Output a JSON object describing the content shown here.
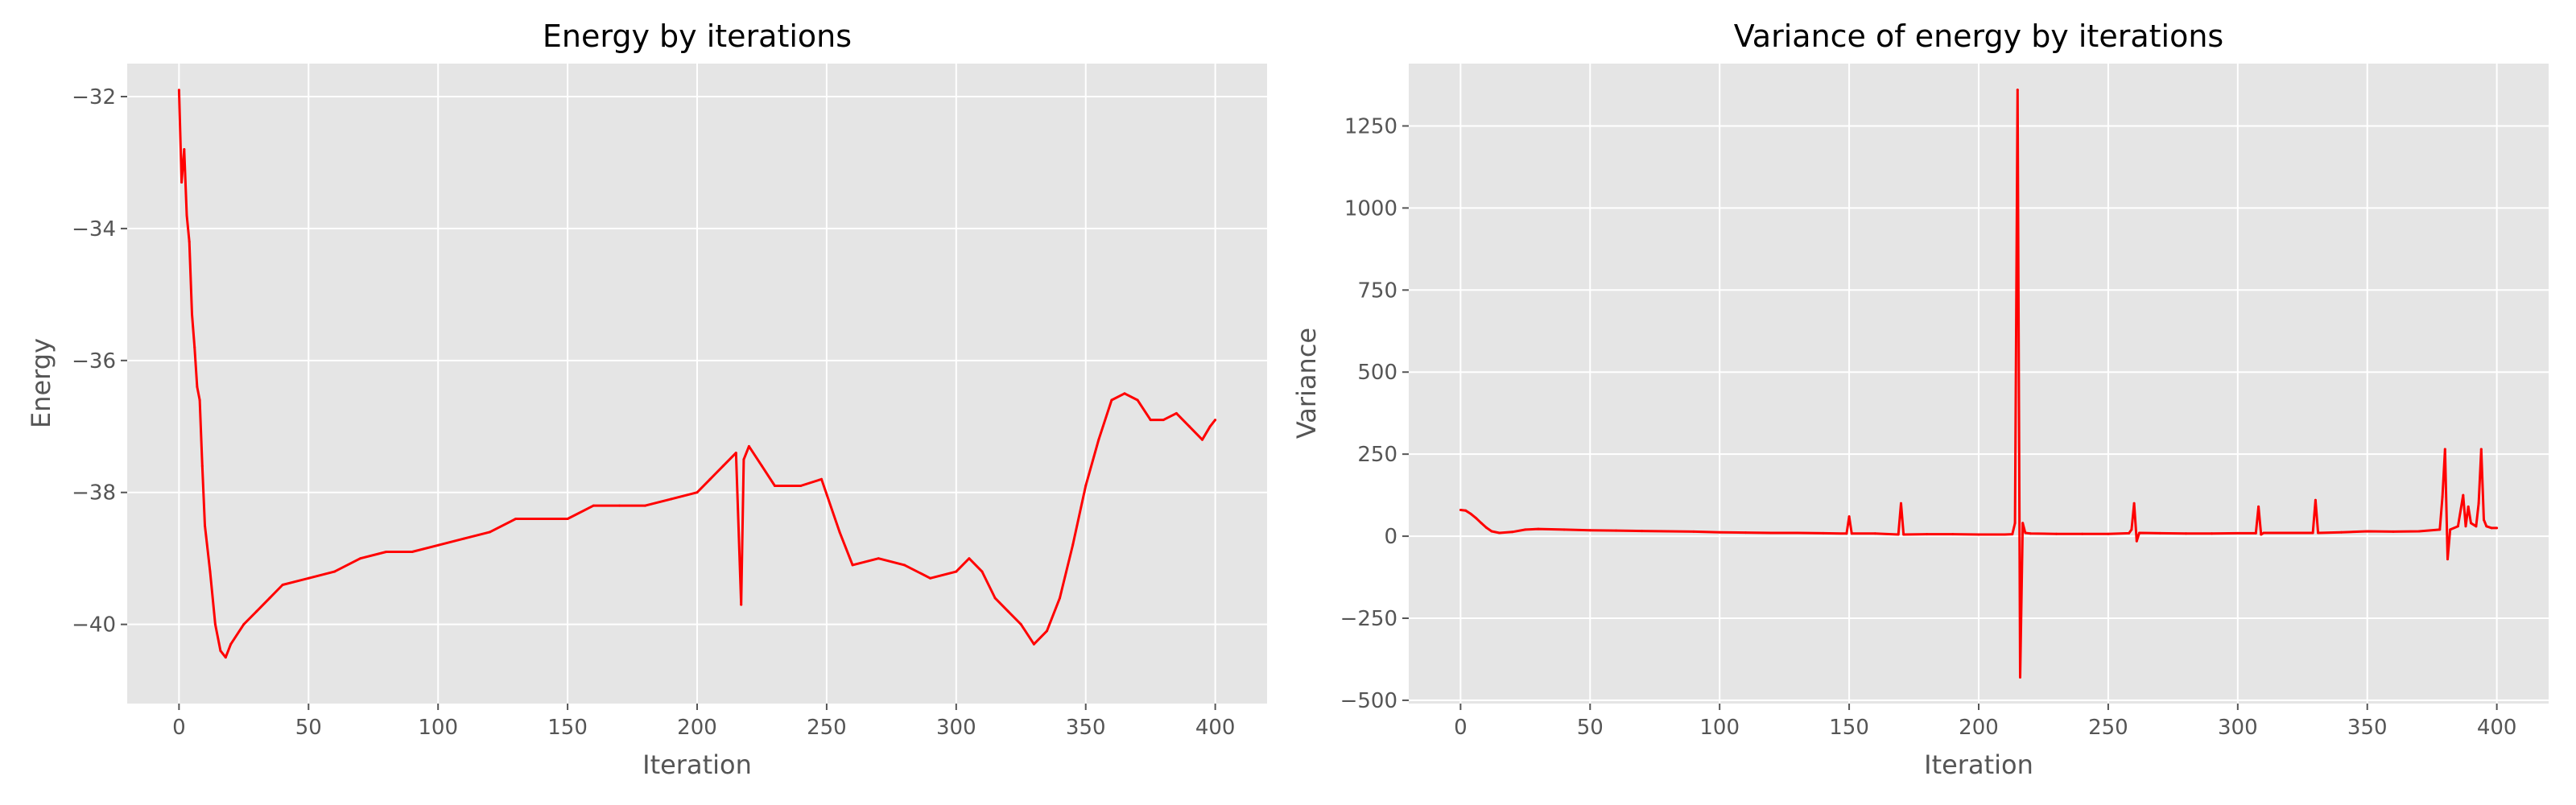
{
  "chart_data": [
    {
      "type": "line",
      "title": "Energy by iterations",
      "xlabel": "Iteration",
      "ylabel": "Energy",
      "xlim": [
        -20,
        420
      ],
      "ylim": [
        -41.2,
        -31.5
      ],
      "xticks": [
        0,
        50,
        100,
        150,
        200,
        250,
        300,
        350,
        400
      ],
      "yticks": [
        -32,
        -34,
        -36,
        -38,
        -40
      ],
      "ytick_labels": [
        "−32",
        "−34",
        "−36",
        "−38",
        "−40"
      ],
      "grid": true,
      "line_color": "#ff0000",
      "background": "#e5e5e5",
      "series": [
        {
          "x": [
            0,
            1,
            2,
            3,
            4,
            5,
            6,
            7,
            8,
            9,
            10,
            12,
            14,
            16,
            18,
            20,
            25,
            30,
            35,
            40,
            50,
            60,
            70,
            80,
            90,
            100,
            110,
            120,
            130,
            140,
            150,
            160,
            170,
            180,
            190,
            200,
            205,
            210,
            215,
            217,
            218,
            220,
            225,
            230,
            240,
            248,
            255,
            260,
            270,
            280,
            290,
            300,
            305,
            310,
            315,
            320,
            325,
            330,
            335,
            340,
            345,
            350,
            355,
            360,
            365,
            370,
            375,
            380,
            385,
            390,
            395,
            398,
            400
          ],
          "values": [
            -31.9,
            -33.3,
            -32.8,
            -33.8,
            -34.2,
            -35.3,
            -35.8,
            -36.4,
            -36.6,
            -37.6,
            -38.5,
            -39.2,
            -40.0,
            -40.4,
            -40.5,
            -40.3,
            -40.0,
            -39.8,
            -39.6,
            -39.4,
            -39.3,
            -39.2,
            -39.0,
            -38.9,
            -38.9,
            -38.8,
            -38.7,
            -38.6,
            -38.4,
            -38.4,
            -38.4,
            -38.2,
            -38.2,
            -38.2,
            -38.1,
            -38.0,
            -37.8,
            -37.6,
            -37.4,
            -39.7,
            -37.5,
            -37.3,
            -37.6,
            -37.9,
            -37.9,
            -37.8,
            -38.6,
            -39.1,
            -39.0,
            -39.1,
            -39.3,
            -39.2,
            -39.0,
            -39.2,
            -39.6,
            -39.8,
            -40.0,
            -40.3,
            -40.1,
            -39.6,
            -38.8,
            -37.9,
            -37.2,
            -36.6,
            -36.5,
            -36.6,
            -36.9,
            -36.9,
            -36.8,
            -37.0,
            -37.2,
            -37.0,
            -36.9
          ]
        }
      ]
    },
    {
      "type": "line",
      "title": "Variance of energy by iterations",
      "xlabel": "Iteration",
      "ylabel": "Variance",
      "xlim": [
        -20,
        420
      ],
      "ylim": [
        -510,
        1440
      ],
      "xticks": [
        0,
        50,
        100,
        150,
        200,
        250,
        300,
        350,
        400
      ],
      "yticks": [
        1250,
        1000,
        750,
        500,
        250,
        0,
        -250,
        -500
      ],
      "ytick_labels": [
        "1250",
        "1000",
        "750",
        "500",
        "250",
        "0",
        "−250",
        "−500"
      ],
      "grid": true,
      "line_color": "#ff0000",
      "background": "#e5e5e5",
      "series": [
        {
          "x": [
            0,
            2,
            4,
            6,
            8,
            10,
            12,
            15,
            20,
            25,
            30,
            40,
            50,
            60,
            70,
            80,
            90,
            100,
            110,
            120,
            130,
            140,
            149,
            150,
            151,
            160,
            169,
            170,
            171,
            180,
            190,
            200,
            210,
            213,
            214,
            215,
            216,
            217,
            218,
            220,
            230,
            240,
            250,
            258,
            259,
            260,
            261,
            262,
            270,
            280,
            290,
            300,
            307,
            308,
            309,
            310,
            320,
            329,
            330,
            331,
            340,
            350,
            360,
            370,
            378,
            379,
            380,
            381,
            382,
            385,
            387,
            388,
            389,
            390,
            392,
            393,
            394,
            395,
            396,
            398,
            400
          ],
          "values": [
            80,
            78,
            68,
            55,
            40,
            26,
            15,
            10,
            13,
            20,
            22,
            20,
            18,
            17,
            16,
            15,
            14,
            12,
            11,
            10,
            10,
            9,
            8,
            60,
            8,
            8,
            5,
            100,
            5,
            6,
            6,
            5,
            5,
            6,
            40,
            1360,
            -430,
            40,
            10,
            8,
            7,
            7,
            7,
            9,
            20,
            100,
            -15,
            10,
            9,
            8,
            8,
            9,
            9,
            90,
            5,
            10,
            10,
            10,
            110,
            10,
            12,
            15,
            14,
            15,
            20,
            120,
            265,
            -70,
            20,
            30,
            125,
            30,
            90,
            40,
            30,
            100,
            265,
            50,
            30,
            25,
            25
          ]
        }
      ]
    }
  ]
}
